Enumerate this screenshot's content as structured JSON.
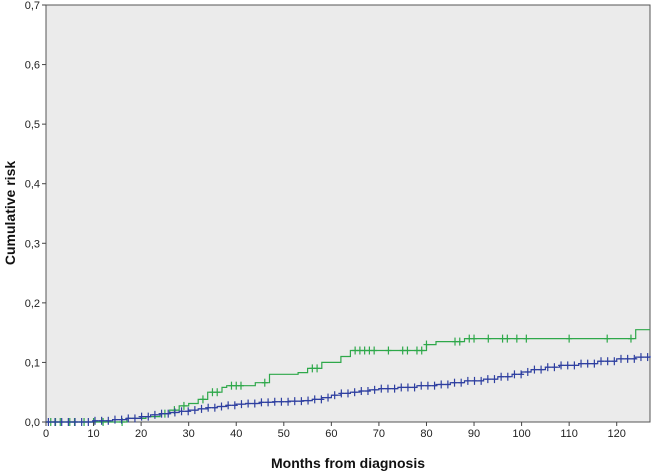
{
  "chart_data": {
    "type": "line",
    "title": "",
    "xlabel": "Months from diagnosis",
    "ylabel": "Cumulative risk",
    "xlim": [
      0,
      127
    ],
    "ylim": [
      0,
      0.7
    ],
    "x_ticks": [
      0,
      10,
      20,
      30,
      40,
      50,
      60,
      70,
      80,
      90,
      100,
      110,
      120
    ],
    "x_tick_labels": [
      "0",
      "10",
      "20",
      "30",
      "40",
      "50",
      "60",
      "70",
      "80",
      "90",
      "100",
      "110",
      "120"
    ],
    "y_ticks": [
      0,
      0.1,
      0.2,
      0.3,
      0.4,
      0.5,
      0.6,
      0.7
    ],
    "y_tick_labels": [
      "0,0",
      "0,1",
      "0,2",
      "0,3",
      "0,4",
      "0,5",
      "0,6",
      "0,7"
    ],
    "grid": false,
    "legend": "none",
    "plot_background": "#ebebeb",
    "series": [
      {
        "color": "#2ea84a",
        "step": true,
        "x": [
          0,
          17,
          21,
          24,
          26,
          28,
          30,
          32,
          34,
          37,
          38,
          44,
          47,
          53,
          55,
          58,
          62,
          64,
          80,
          82,
          88,
          100,
          124,
          127
        ],
        "y": [
          0,
          0.006,
          0.009,
          0.014,
          0.02,
          0.027,
          0.031,
          0.038,
          0.05,
          0.058,
          0.061,
          0.066,
          0.08,
          0.083,
          0.09,
          0.1,
          0.11,
          0.12,
          0.13,
          0.135,
          0.14,
          0.14,
          0.155,
          0.155
        ],
        "censored_x": [
          1,
          2,
          3,
          5,
          6,
          8,
          10,
          12,
          16,
          25,
          27,
          29,
          33,
          35,
          36,
          39,
          40,
          41,
          46,
          56,
          57,
          65,
          66,
          67,
          68,
          69,
          72,
          75,
          76,
          78,
          79,
          80,
          86,
          87,
          89,
          90,
          93,
          96,
          97,
          99,
          101,
          110,
          118,
          123
        ]
      },
      {
        "color": "#2e3fa0",
        "step": true,
        "x": [
          0,
          10,
          14,
          17,
          20,
          22,
          24,
          26,
          28,
          30,
          32,
          34,
          36,
          38,
          40,
          42,
          45,
          48,
          51,
          54,
          56,
          58,
          60,
          62,
          64,
          66,
          68,
          70,
          74,
          78,
          82,
          85,
          88,
          92,
          95,
          98,
          100,
          102,
          105,
          108,
          112,
          116,
          120,
          124,
          127
        ],
        "y": [
          0,
          0.002,
          0.004,
          0.006,
          0.009,
          0.012,
          0.014,
          0.016,
          0.018,
          0.02,
          0.022,
          0.024,
          0.026,
          0.028,
          0.03,
          0.031,
          0.033,
          0.034,
          0.035,
          0.036,
          0.038,
          0.041,
          0.045,
          0.048,
          0.05,
          0.052,
          0.054,
          0.056,
          0.058,
          0.061,
          0.063,
          0.066,
          0.069,
          0.072,
          0.076,
          0.08,
          0.084,
          0.088,
          0.092,
          0.095,
          0.098,
          0.102,
          0.106,
          0.109,
          0.111
        ]
      }
    ]
  }
}
